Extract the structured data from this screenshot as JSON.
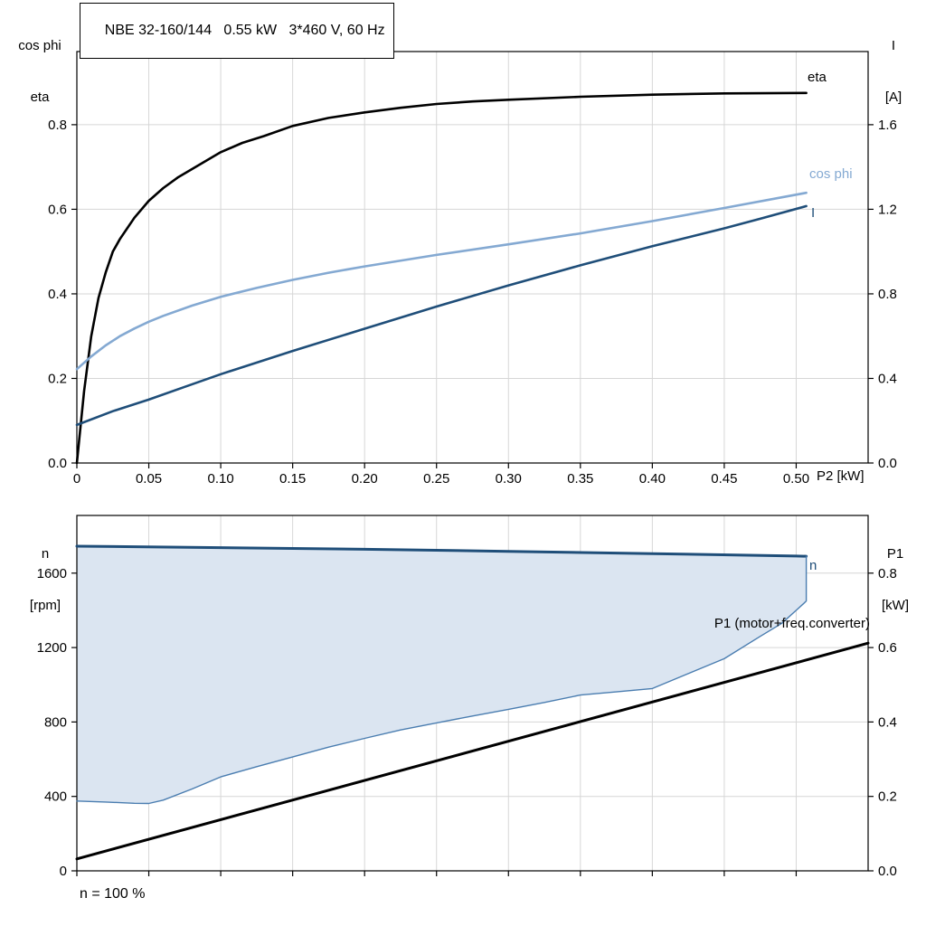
{
  "colors": {
    "grid": "#d6d6d6",
    "axis": "#000000",
    "eta": "#000000",
    "cos_phi": "#84a9d2",
    "current": "#1f4e79",
    "speed": "#1f4e79",
    "speed_range_fill": "#dbe5f1",
    "p1": "#000000"
  },
  "labels": {
    "top_left": [
      "cos phi",
      "eta"
    ],
    "top_right": [
      "I",
      "[A]"
    ],
    "bottom_left": [
      "n",
      "[rpm]"
    ],
    "bottom_right": [
      "P1",
      "[kW]"
    ]
  },
  "chart_data": [
    {
      "type": "line",
      "title": "NBE 32-160/144   0.55 kW   3*460 V, 60 Hz",
      "xlabel": "P2 [kW]",
      "ylabel_left": "cos phi / eta",
      "ylabel_right": "I [A]",
      "xlim": [
        0,
        0.55
      ],
      "ylim_left": [
        0,
        0.973
      ],
      "ylim_right": [
        0,
        1.946
      ],
      "grid": true,
      "x_ticks": {
        "values": [
          0,
          0.05,
          0.1,
          0.15,
          0.2,
          0.25,
          0.3,
          0.35,
          0.4,
          0.45,
          0.5
        ],
        "labels": [
          "0",
          "0.05",
          "0.10",
          "0.15",
          "0.20",
          "0.25",
          "0.30",
          "0.35",
          "0.40",
          "0.45",
          "0.50"
        ]
      },
      "y_ticks_left": {
        "values": [
          0,
          0.2,
          0.4,
          0.6,
          0.8
        ],
        "labels": [
          "0.0",
          "0.2",
          "0.4",
          "0.6",
          "0.8"
        ]
      },
      "y_ticks_right": {
        "values": [
          0,
          0.4,
          0.8,
          1.2,
          1.6
        ],
        "labels": [
          "0.0",
          "0.4",
          "0.8",
          "1.2",
          "1.6"
        ]
      },
      "series": [
        {
          "name": "eta",
          "axis": "left",
          "color": "#000000",
          "width": 2.6,
          "x": [
            0,
            0.005,
            0.01,
            0.015,
            0.02,
            0.025,
            0.03,
            0.04,
            0.05,
            0.06,
            0.07,
            0.08,
            0.09,
            0.1,
            0.115,
            0.13,
            0.15,
            0.175,
            0.2,
            0.225,
            0.25,
            0.275,
            0.3,
            0.35,
            0.4,
            0.45,
            0.507
          ],
          "y": [
            0,
            0.17,
            0.3,
            0.39,
            0.45,
            0.5,
            0.53,
            0.58,
            0.62,
            0.65,
            0.675,
            0.695,
            0.715,
            0.735,
            0.757,
            0.773,
            0.797,
            0.816,
            0.829,
            0.84,
            0.849,
            0.855,
            0.859,
            0.866,
            0.871,
            0.874,
            0.875
          ]
        },
        {
          "name": "cos phi",
          "axis": "left",
          "color": "#84a9d2",
          "width": 2.6,
          "x": [
            0,
            0.01,
            0.02,
            0.03,
            0.04,
            0.05,
            0.06,
            0.08,
            0.1,
            0.125,
            0.15,
            0.175,
            0.2,
            0.25,
            0.3,
            0.35,
            0.4,
            0.45,
            0.507
          ],
          "y": [
            0.222,
            0.252,
            0.278,
            0.3,
            0.318,
            0.334,
            0.348,
            0.372,
            0.393,
            0.414,
            0.433,
            0.45,
            0.465,
            0.492,
            0.517,
            0.543,
            0.572,
            0.603,
            0.639
          ]
        },
        {
          "name": "I",
          "axis": "right",
          "color": "#1f4e79",
          "width": 2.6,
          "x": [
            0,
            0.025,
            0.05,
            0.075,
            0.1,
            0.15,
            0.2,
            0.25,
            0.3,
            0.35,
            0.4,
            0.45,
            0.475,
            0.507
          ],
          "y": [
            0.18,
            0.245,
            0.3,
            0.36,
            0.42,
            0.53,
            0.635,
            0.74,
            0.84,
            0.935,
            1.025,
            1.11,
            1.155,
            1.215
          ]
        }
      ]
    },
    {
      "type": "line",
      "title": "",
      "xlabel": "",
      "ylabel_left": "n [rpm]",
      "ylabel_right": "P1 [kW]",
      "footnote": "n = 100 %",
      "xlim": [
        0,
        0.55
      ],
      "ylim_left": [
        0,
        1910
      ],
      "ylim_right": [
        0,
        0.955
      ],
      "grid": true,
      "x_ticks": {
        "values": [
          0,
          0.05,
          0.1,
          0.15,
          0.2,
          0.25,
          0.3,
          0.35,
          0.4,
          0.45,
          0.5
        ],
        "labels": [
          "",
          "",
          "",
          "",
          "",
          "",
          "",
          "",
          "",
          "",
          ""
        ]
      },
      "y_ticks_left": {
        "values": [
          0,
          400,
          800,
          1200,
          1600
        ],
        "labels": [
          "0",
          "400",
          "800",
          "1200",
          "1600"
        ]
      },
      "y_ticks_right": {
        "values": [
          0,
          0.2,
          0.4,
          0.6,
          0.8
        ],
        "labels": [
          "0.0",
          "0.2",
          "0.4",
          "0.6",
          "0.8"
        ]
      },
      "area": {
        "upper": "n",
        "lower": "n min",
        "color": "#dbe5f1"
      },
      "series": [
        {
          "name": "n",
          "axis": "left",
          "color": "#1f4e79",
          "width": 3,
          "x": [
            0,
            0.1,
            0.2,
            0.3,
            0.4,
            0.5,
            0.507
          ],
          "y": [
            1745,
            1737,
            1728,
            1717,
            1705,
            1692,
            1691
          ]
        },
        {
          "name": "n min",
          "axis": "left",
          "color": "#4a7db0",
          "width": 1.4,
          "x": [
            0,
            0.02,
            0.04,
            0.05,
            0.06,
            0.08,
            0.1,
            0.125,
            0.15,
            0.175,
            0.2,
            0.225,
            0.25,
            0.275,
            0.3,
            0.325,
            0.35,
            0.375,
            0.4,
            0.425,
            0.45,
            0.475,
            0.49,
            0.5,
            0.505,
            0.507,
            0.507
          ],
          "y": [
            375,
            370,
            363,
            362,
            380,
            440,
            505,
            560,
            612,
            665,
            712,
            757,
            795,
            832,
            868,
            905,
            945,
            962,
            980,
            1060,
            1140,
            1260,
            1330,
            1400,
            1435,
            1450,
            1691
          ]
        },
        {
          "name": "P1 (motor+freq.converter)",
          "axis": "right",
          "color": "#000000",
          "width": 3,
          "x": [
            0,
            0.55
          ],
          "y": [
            0.032,
            0.612
          ]
        }
      ]
    }
  ]
}
